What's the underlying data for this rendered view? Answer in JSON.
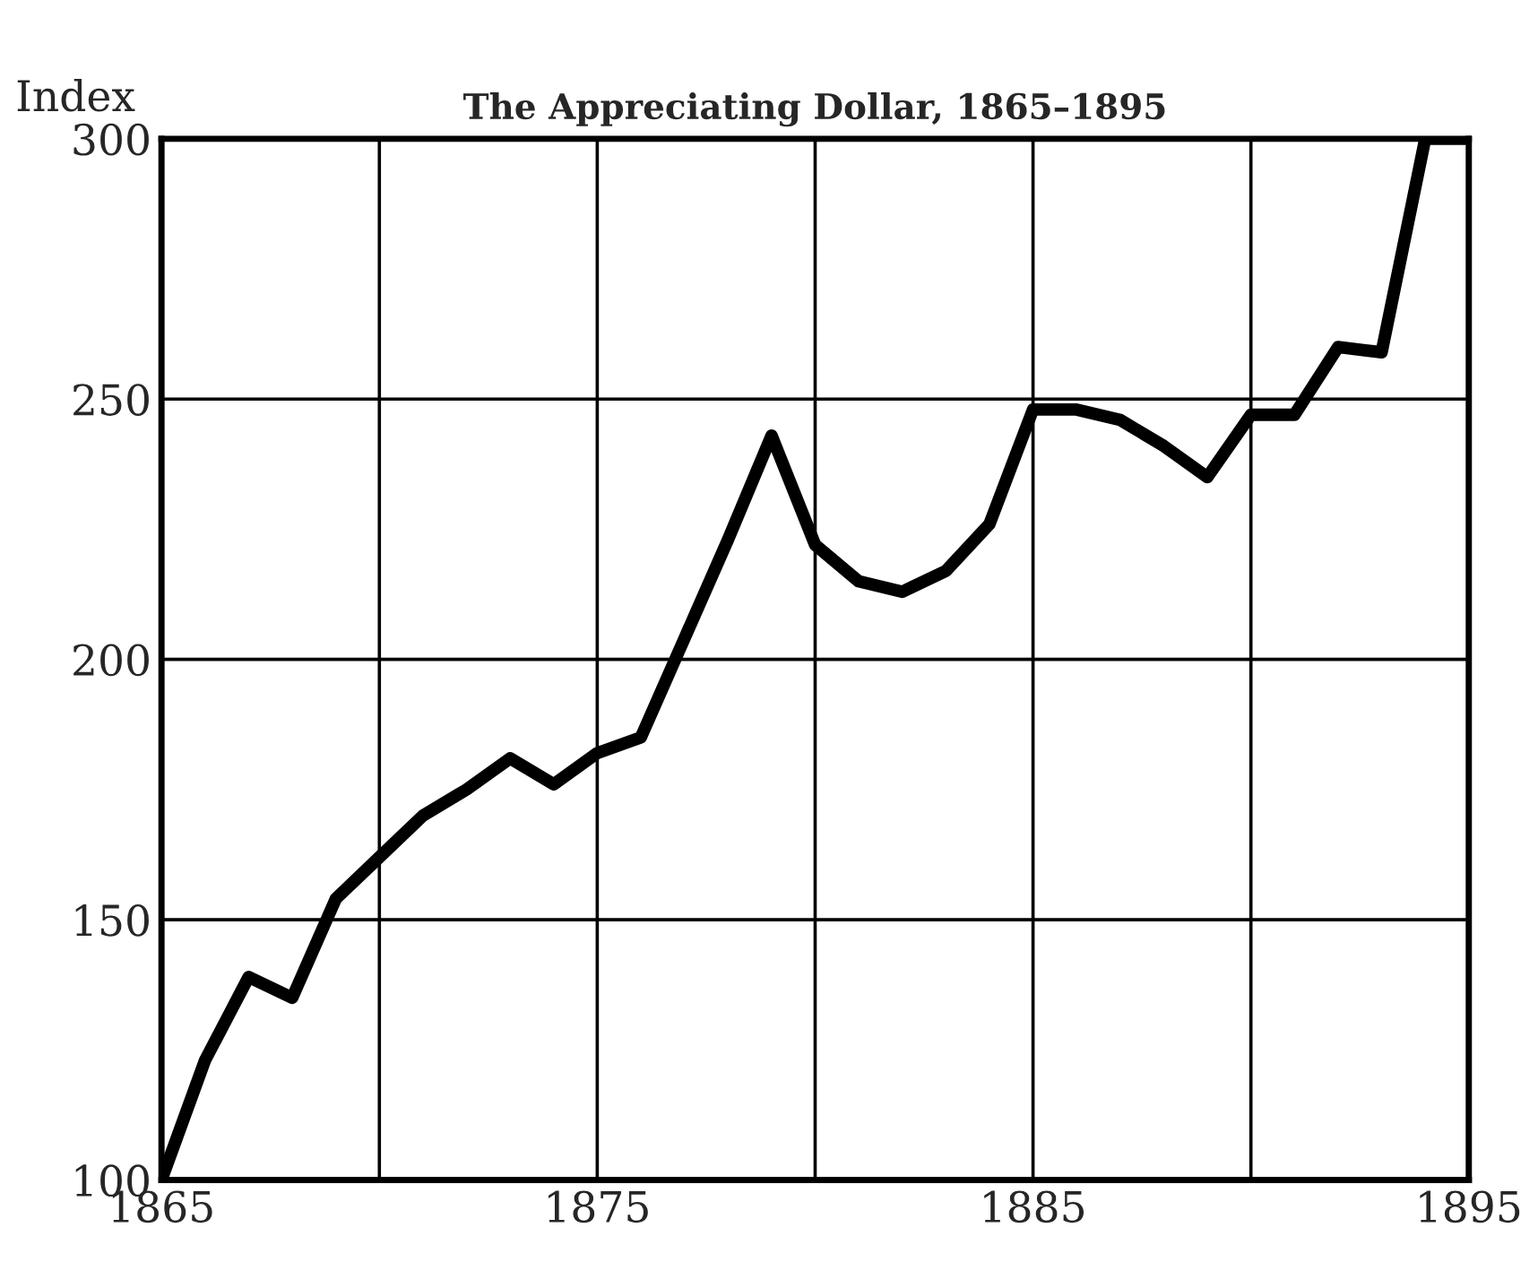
{
  "chart_data": {
    "type": "line",
    "title": "The Appreciating Dollar, 1865–1895",
    "ylabel": "Index",
    "x": [
      1865,
      1866,
      1867,
      1868,
      1869,
      1870,
      1871,
      1872,
      1873,
      1874,
      1875,
      1876,
      1877,
      1878,
      1879,
      1880,
      1881,
      1882,
      1883,
      1884,
      1885,
      1886,
      1887,
      1888,
      1889,
      1890,
      1891,
      1892,
      1893,
      1894,
      1895
    ],
    "series": [
      {
        "color": "#000000",
        "values": [
          100,
          123,
          139,
          135,
          154,
          162,
          170,
          175,
          181,
          176,
          182,
          185,
          204,
          223,
          243,
          222,
          215,
          213,
          217,
          226,
          248,
          248,
          246,
          241,
          235,
          247,
          247,
          260,
          259,
          300,
          300
        ]
      }
    ],
    "xlim": [
      1865,
      1895
    ],
    "xticks": [
      1865,
      {
        "value": 1870,
        "label": null
      },
      1875,
      {
        "value": 1880,
        "label": null
      },
      1885,
      {
        "value": 1890,
        "label": null
      },
      1895
    ],
    "ylim": [
      100,
      300
    ],
    "yticks": [
      100,
      150,
      200,
      250,
      300
    ],
    "grid": true,
    "marker": "none",
    "line_style": "solid"
  }
}
